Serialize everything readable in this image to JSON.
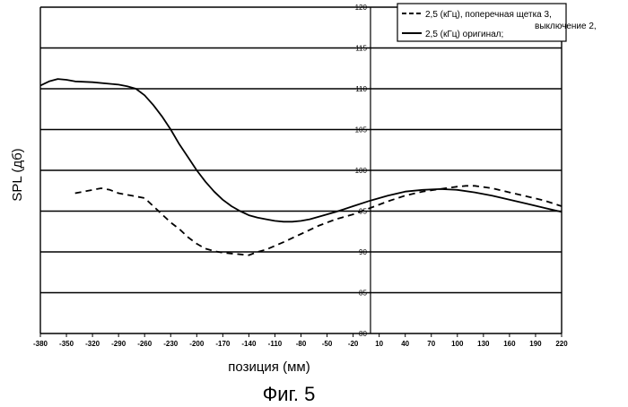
{
  "chart_data": {
    "type": "line",
    "xlabel": "позиция (мм)",
    "ylabel": "SPL (дб)",
    "caption": "Фиг. 5",
    "x_ticks": [
      -380,
      -350,
      -320,
      -290,
      -260,
      -230,
      -200,
      -170,
      -140,
      -110,
      -80,
      -50,
      -20,
      10,
      40,
      70,
      100,
      130,
      160,
      190,
      220
    ],
    "x_tick_labels": [
      "-380",
      "-350",
      "-320",
      "-290",
      "-260",
      "-230",
      "-200",
      "-170",
      "-140",
      "-110",
      "-80",
      "-50",
      "-20",
      "10",
      "40",
      "70",
      "100",
      "130",
      "160",
      "190",
      "220"
    ],
    "y_ticks": [
      80,
      85,
      90,
      95,
      100,
      105,
      110,
      115,
      120
    ],
    "y_tick_labels": [
      "80",
      "85",
      "90",
      "95",
      "100",
      "105",
      "110",
      "115",
      "120"
    ],
    "xlim": [
      -380,
      220
    ],
    "ylim": [
      80,
      120
    ],
    "grid": "horizontal",
    "legend_position": "top-right",
    "legend_note": "выключение 2,",
    "series": [
      {
        "name": "2,5 (кГц), поперечная щетка 3,",
        "style": "dashed",
        "x": [
          -340,
          -330,
          -310,
          -300,
          -290,
          -280,
          -260,
          -250,
          -240,
          -230,
          -220,
          -210,
          -200,
          -190,
          -180,
          -170,
          -160,
          -150,
          -140,
          -130,
          -120,
          -100,
          -80,
          -60,
          -40,
          -20,
          0,
          20,
          40,
          60,
          80,
          100,
          110,
          120,
          140,
          160,
          180,
          200,
          220
        ],
        "y": [
          97.2,
          97.4,
          97.8,
          97.6,
          97.2,
          97.0,
          96.6,
          95.6,
          94.6,
          93.6,
          92.8,
          91.8,
          91.0,
          90.4,
          90.1,
          89.9,
          89.8,
          89.7,
          89.6,
          90.0,
          90.3,
          91.2,
          92.2,
          93.2,
          94.0,
          94.6,
          95.4,
          96.2,
          96.9,
          97.4,
          97.7,
          98.0,
          98.1,
          98.1,
          97.8,
          97.3,
          96.8,
          96.3,
          95.6
        ]
      },
      {
        "name": "2,5 (кГц) оригинал;",
        "style": "solid",
        "x": [
          -380,
          -370,
          -360,
          -350,
          -340,
          -320,
          -300,
          -290,
          -280,
          -270,
          -260,
          -250,
          -240,
          -230,
          -220,
          -210,
          -200,
          -190,
          -180,
          -170,
          -160,
          -150,
          -140,
          -130,
          -120,
          -110,
          -100,
          -90,
          -80,
          -70,
          -60,
          -40,
          -20,
          0,
          20,
          40,
          60,
          80,
          100,
          120,
          140,
          160,
          180,
          200,
          220
        ],
        "y": [
          110.4,
          110.9,
          111.2,
          111.1,
          110.9,
          110.8,
          110.6,
          110.5,
          110.3,
          110.0,
          109.2,
          108.0,
          106.6,
          105.0,
          103.2,
          101.6,
          100.0,
          98.6,
          97.4,
          96.4,
          95.6,
          95.0,
          94.5,
          94.2,
          94.0,
          93.8,
          93.7,
          93.7,
          93.8,
          94.0,
          94.3,
          94.9,
          95.6,
          96.3,
          96.9,
          97.4,
          97.6,
          97.7,
          97.6,
          97.3,
          96.9,
          96.4,
          95.9,
          95.4,
          94.9
        ]
      }
    ]
  }
}
